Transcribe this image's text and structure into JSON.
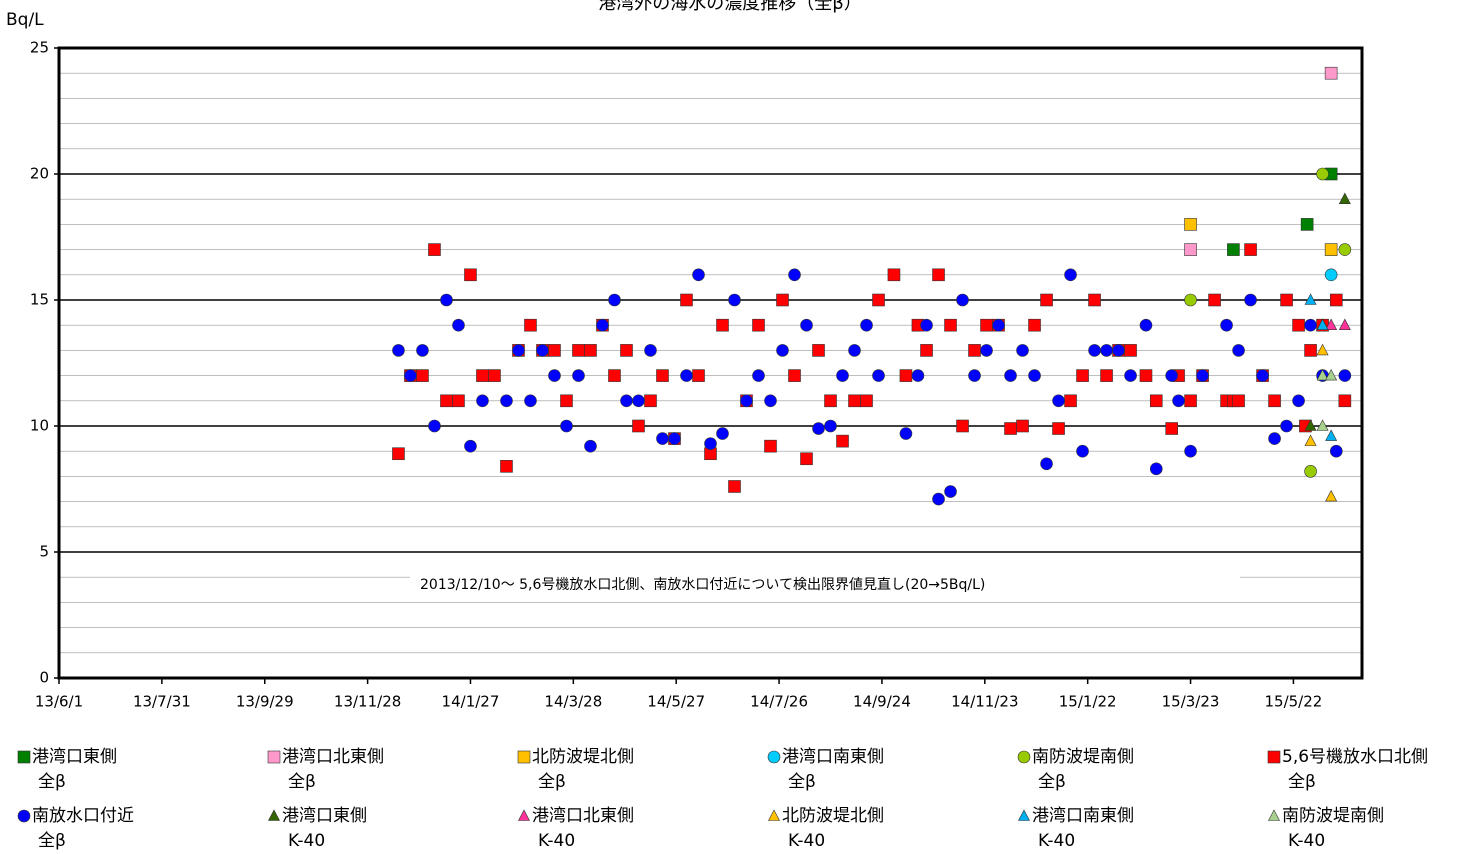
{
  "chart_data": {
    "type": "scatter",
    "title": "港湾外の海水の濃度推移（全β）",
    "ylabel": "Bq/L",
    "annotation": "2013/12/10～ 5,6号機放水口北側、南放水口付近について検出限界値見直し(20→5Bq/L)",
    "xlim": [
      "2013-06-01",
      "2015-07-01"
    ],
    "xticks": [
      {
        "value": "2013-06-01",
        "label": "13/6/1"
      },
      {
        "value": "2013-07-31",
        "label": "13/7/31"
      },
      {
        "value": "2013-09-29",
        "label": "13/9/29"
      },
      {
        "value": "2013-11-28",
        "label": "13/11/28"
      },
      {
        "value": "2014-01-27",
        "label": "14/1/27"
      },
      {
        "value": "2014-03-28",
        "label": "14/3/28"
      },
      {
        "value": "2014-05-27",
        "label": "14/5/27"
      },
      {
        "value": "2014-07-26",
        "label": "14/7/26"
      },
      {
        "value": "2014-09-24",
        "label": "14/9/24"
      },
      {
        "value": "2014-11-23",
        "label": "14/11/23"
      },
      {
        "value": "2015-01-22",
        "label": "15/1/22"
      },
      {
        "value": "2015-03-23",
        "label": "15/3/23"
      },
      {
        "value": "2015-05-22",
        "label": "15/5/22"
      }
    ],
    "ylim": [
      0,
      25
    ],
    "yticks": [
      0,
      5,
      10,
      15,
      20,
      25
    ],
    "minor_ystep": 1,
    "grid": true,
    "series": [
      {
        "name": "港湾口東側",
        "nuclide": "全β",
        "marker": "square",
        "color": "#008000",
        "x": [
          "2015-04-17",
          "2015-05-30",
          "2015-06-13"
        ],
        "values": [
          17,
          18,
          20
        ]
      },
      {
        "name": "港湾口北東側",
        "nuclide": "全β",
        "marker": "square",
        "color": "#ff99cc",
        "x": [
          "2015-03-23",
          "2015-06-13"
        ],
        "values": [
          17,
          24
        ]
      },
      {
        "name": "北防波堤北側",
        "nuclide": "全β",
        "marker": "square",
        "color": "#ffc000",
        "x": [
          "2015-03-23",
          "2015-06-13"
        ],
        "values": [
          18,
          17
        ]
      },
      {
        "name": "港湾口南東側",
        "nuclide": "全β",
        "marker": "circle",
        "color": "#00ccff",
        "x": [
          "2015-06-13"
        ],
        "values": [
          16
        ]
      },
      {
        "name": "南防波堤南側",
        "nuclide": "全β",
        "marker": "circle",
        "color": "#99cc00",
        "x": [
          "2015-03-23",
          "2015-06-01",
          "2015-06-08",
          "2015-06-21"
        ],
        "values": [
          15,
          8.2,
          20,
          17
        ]
      },
      {
        "name": "5,6号機放水口北側",
        "nuclide": "全β",
        "marker": "square",
        "color": "#ff0000",
        "x": [
          "2013-12-16",
          "2013-12-23",
          "2013-12-30",
          "2014-01-06",
          "2014-01-13",
          "2014-01-20",
          "2014-01-27",
          "2014-02-03",
          "2014-02-10",
          "2014-02-17",
          "2014-02-24",
          "2014-03-03",
          "2014-03-10",
          "2014-03-17",
          "2014-03-24",
          "2014-03-31",
          "2014-04-07",
          "2014-04-14",
          "2014-04-21",
          "2014-04-28",
          "2014-05-05",
          "2014-05-12",
          "2014-05-19",
          "2014-05-26",
          "2014-06-02",
          "2014-06-09",
          "2014-06-16",
          "2014-06-23",
          "2014-06-30",
          "2014-07-07",
          "2014-07-14",
          "2014-07-21",
          "2014-07-28",
          "2014-08-04",
          "2014-08-11",
          "2014-08-18",
          "2014-08-25",
          "2014-09-01",
          "2014-09-08",
          "2014-09-15",
          "2014-09-22",
          "2014-10-01",
          "2014-10-08",
          "2014-10-15",
          "2014-10-20",
          "2014-10-27",
          "2014-11-03",
          "2014-11-10",
          "2014-11-17",
          "2014-11-24",
          "2014-12-01",
          "2014-12-08",
          "2014-12-15",
          "2014-12-22",
          "2014-12-29",
          "2015-01-05",
          "2015-01-12",
          "2015-01-19",
          "2015-01-26",
          "2015-02-02",
          "2015-02-09",
          "2015-02-16",
          "2015-02-25",
          "2015-03-03",
          "2015-03-12",
          "2015-03-16",
          "2015-03-23",
          "2015-03-30",
          "2015-04-06",
          "2015-04-13",
          "2015-04-17",
          "2015-04-20",
          "2015-04-27",
          "2015-05-04",
          "2015-05-11",
          "2015-05-18",
          "2015-05-25",
          "2015-05-29",
          "2015-06-01",
          "2015-06-08",
          "2015-06-16",
          "2015-06-21"
        ],
        "values": [
          8.9,
          12,
          12,
          17,
          11,
          11,
          16,
          12,
          12,
          8.4,
          13,
          14,
          13,
          13,
          11,
          13,
          13,
          14,
          12,
          13,
          10,
          11,
          12,
          9.5,
          15,
          12,
          8.9,
          14,
          7.6,
          11,
          14,
          9.2,
          15,
          12,
          8.7,
          13,
          11,
          9.4,
          11,
          11,
          15,
          16,
          12,
          14,
          13,
          16,
          14,
          10,
          13,
          14,
          14,
          9.9,
          10,
          14,
          15,
          9.9,
          11,
          12,
          15,
          12,
          13,
          13,
          12,
          11,
          9.9,
          12,
          11,
          12,
          15,
          11,
          11,
          11,
          17,
          12,
          11,
          15,
          14,
          10,
          13,
          14,
          15,
          11
        ]
      },
      {
        "name": "南放水口付近",
        "nuclide": "全β",
        "marker": "circle",
        "color": "#0000ff",
        "x": [
          "2013-12-16",
          "2013-12-23",
          "2013-12-30",
          "2014-01-06",
          "2014-01-13",
          "2014-01-20",
          "2014-01-27",
          "2014-02-03",
          "2014-02-17",
          "2014-02-24",
          "2014-03-03",
          "2014-03-10",
          "2014-03-17",
          "2014-03-24",
          "2014-03-31",
          "2014-04-07",
          "2014-04-14",
          "2014-04-21",
          "2014-04-28",
          "2014-05-05",
          "2014-05-12",
          "2014-05-19",
          "2014-05-26",
          "2014-06-02",
          "2014-06-09",
          "2014-06-16",
          "2014-06-23",
          "2014-06-30",
          "2014-07-07",
          "2014-07-14",
          "2014-07-21",
          "2014-07-28",
          "2014-08-04",
          "2014-08-11",
          "2014-08-18",
          "2014-08-25",
          "2014-09-01",
          "2014-09-08",
          "2014-09-15",
          "2014-09-22",
          "2014-10-08",
          "2014-10-15",
          "2014-10-20",
          "2014-10-27",
          "2014-11-03",
          "2014-11-10",
          "2014-11-17",
          "2014-11-24",
          "2014-12-01",
          "2014-12-08",
          "2014-12-15",
          "2014-12-22",
          "2014-12-29",
          "2015-01-05",
          "2015-01-12",
          "2015-01-19",
          "2015-01-26",
          "2015-02-02",
          "2015-02-09",
          "2015-02-16",
          "2015-02-25",
          "2015-03-03",
          "2015-03-12",
          "2015-03-16",
          "2015-03-23",
          "2015-03-30",
          "2015-04-13",
          "2015-04-20",
          "2015-04-27",
          "2015-05-04",
          "2015-05-11",
          "2015-05-18",
          "2015-05-25",
          "2015-06-01",
          "2015-06-08",
          "2015-06-16",
          "2015-06-21"
        ],
        "values": [
          13,
          12,
          13,
          10,
          15,
          14,
          9.2,
          11,
          11,
          13,
          11,
          13,
          12,
          10,
          12,
          9.2,
          14,
          15,
          11,
          11,
          13,
          9.5,
          9.5,
          12,
          16,
          9.3,
          9.7,
          15,
          11,
          12,
          11,
          13,
          16,
          14,
          9.9,
          10,
          12,
          13,
          14,
          12,
          9.7,
          12,
          14,
          7.1,
          7.4,
          15,
          12,
          13,
          14,
          12,
          13,
          12,
          8.5,
          11,
          16,
          9,
          13,
          13,
          13,
          12,
          14,
          8.3,
          12,
          11,
          9,
          12,
          14,
          13,
          15,
          12,
          9.5,
          10,
          11,
          14,
          12,
          9,
          12
        ]
      },
      {
        "name": "港湾口東側",
        "nuclide": "K-40",
        "marker": "triangle",
        "color": "#336600",
        "x": [
          "2015-06-01",
          "2015-06-21"
        ],
        "values": [
          10,
          19
        ]
      },
      {
        "name": "港湾口北東側",
        "nuclide": "K-40",
        "marker": "triangle",
        "color": "#ff3399",
        "x": [
          "2015-06-08",
          "2015-06-13",
          "2015-06-21"
        ],
        "values": [
          14,
          14,
          14
        ]
      },
      {
        "name": "北防波堤北側",
        "nuclide": "K-40",
        "marker": "triangle",
        "color": "#ffc000",
        "x": [
          "2015-06-01",
          "2015-06-08",
          "2015-06-13"
        ],
        "values": [
          9.4,
          13,
          7.2
        ]
      },
      {
        "name": "港湾口南東側",
        "nuclide": "K-40",
        "marker": "triangle",
        "color": "#00b0f0",
        "x": [
          "2015-06-01",
          "2015-06-08",
          "2015-06-13"
        ],
        "values": [
          15,
          14,
          9.6
        ]
      },
      {
        "name": "南防波堤南側",
        "nuclide": "K-40",
        "marker": "triangle",
        "color": "#a9d18e",
        "x": [
          "2015-06-08",
          "2015-06-08",
          "2015-06-13"
        ],
        "values": [
          12,
          10,
          12
        ]
      }
    ]
  }
}
